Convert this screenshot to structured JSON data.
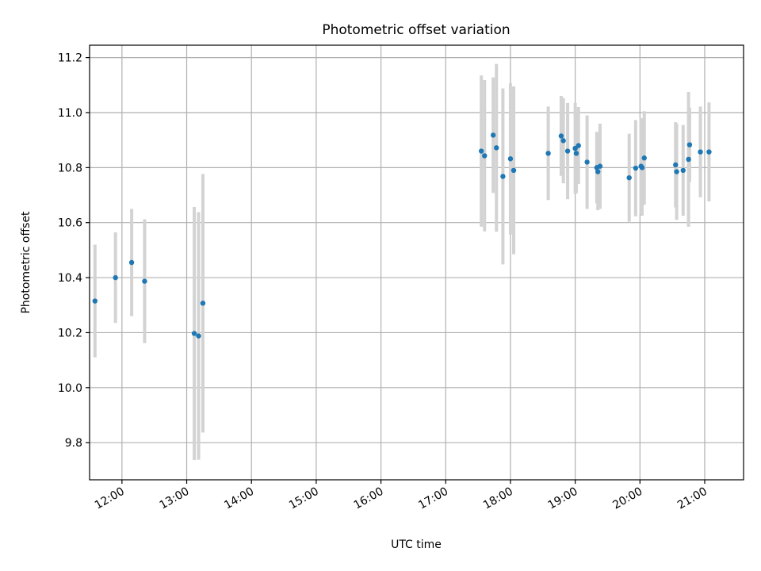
{
  "chart_data": {
    "type": "scatter",
    "title": "Photometric offset variation",
    "xlabel": "UTC time",
    "ylabel": "Photometric offset",
    "xlim": [
      "11:30",
      "21:36"
    ],
    "ylim": [
      9.665,
      11.245
    ],
    "x_ticks": [
      "12:00",
      "13:00",
      "14:00",
      "15:00",
      "16:00",
      "17:00",
      "18:00",
      "19:00",
      "20:00",
      "21:00"
    ],
    "y_ticks": [
      "9.8",
      "10.0",
      "10.2",
      "10.4",
      "10.6",
      "10.8",
      "11.0",
      "11.2"
    ],
    "grid": true,
    "colors": {
      "points": "#1f77b4",
      "errorbars": "#d3d3d3",
      "grid": "#b0b0b0"
    },
    "series": [
      {
        "x": [
          "11:35",
          "11:54",
          "12:09",
          "12:21",
          "13:07",
          "13:11",
          "13:15",
          "17:33",
          "17:36",
          "17:44",
          "17:47",
          "17:53",
          "18:00",
          "18:03",
          "18:35",
          "18:47",
          "18:49",
          "18:53",
          "19:00",
          "19:01",
          "19:03",
          "19:11",
          "19:20",
          "19:21",
          "19:23",
          "19:50",
          "19:56",
          "20:01",
          "20:02",
          "20:04",
          "20:33",
          "20:34",
          "20:40",
          "20:45",
          "20:46",
          "20:56",
          "21:04"
        ],
        "y": [
          10.315,
          10.4,
          10.455,
          10.387,
          10.197,
          10.188,
          10.307,
          10.86,
          10.843,
          10.918,
          10.872,
          10.768,
          10.832,
          10.79,
          10.852,
          10.915,
          10.898,
          10.86,
          10.87,
          10.852,
          10.88,
          10.82,
          10.8,
          10.785,
          10.805,
          10.763,
          10.798,
          10.805,
          10.8,
          10.835,
          10.81,
          10.785,
          10.79,
          10.83,
          10.883,
          10.857,
          10.857
        ],
        "yerr": [
          0.205,
          0.165,
          0.195,
          0.225,
          0.46,
          0.45,
          0.47,
          0.275,
          0.275,
          0.21,
          0.305,
          0.32,
          0.275,
          0.305,
          0.17,
          0.145,
          0.155,
          0.175,
          0.165,
          0.145,
          0.14,
          0.17,
          0.13,
          0.14,
          0.155,
          0.16,
          0.175,
          0.175,
          0.175,
          0.17,
          0.155,
          0.175,
          0.165,
          0.245,
          0.135,
          0.165,
          0.18
        ]
      }
    ]
  }
}
